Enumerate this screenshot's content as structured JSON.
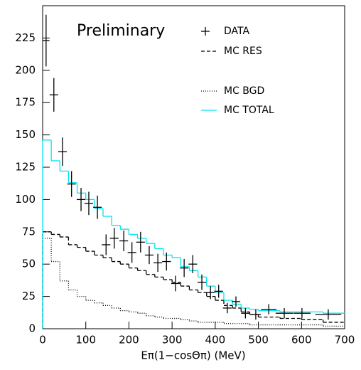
{
  "chart_data": {
    "type": "histogram",
    "annotation": "Preliminary",
    "x_label": "Eπ(1−cosΘπ) (MeV)",
    "xlim": [
      0,
      700
    ],
    "xticks": [
      0,
      100,
      200,
      300,
      400,
      500,
      600,
      700
    ],
    "ylim": [
      0,
      250
    ],
    "yticks": [
      0,
      25,
      50,
      75,
      100,
      125,
      150,
      175,
      200,
      225
    ],
    "bins": [
      0,
      20,
      40,
      60,
      80,
      100,
      120,
      140,
      160,
      180,
      200,
      220,
      240,
      260,
      280,
      300,
      320,
      340,
      360,
      380,
      400,
      420,
      440,
      460,
      480,
      500,
      550,
      600,
      650,
      700
    ],
    "series": [
      {
        "name": "MC RES",
        "color": "#000000",
        "style": "dashed",
        "values": [
          75,
          73,
          71,
          65,
          63,
          60,
          57,
          55,
          52,
          50,
          47,
          45,
          42,
          40,
          38,
          36,
          33,
          30,
          28,
          25,
          22,
          18,
          16,
          13,
          11,
          9,
          8,
          7,
          5
        ]
      },
      {
        "name": "MC BGD",
        "color": "#000000",
        "style": "dotted",
        "values": [
          70,
          52,
          37,
          30,
          25,
          22,
          20,
          18,
          16,
          14,
          13,
          12,
          10,
          9,
          8,
          8,
          7,
          6,
          5,
          5,
          5,
          4,
          4,
          4,
          3,
          3,
          3,
          3,
          2
        ]
      },
      {
        "name": "MC TOTAL",
        "color": "#00e5ee",
        "style": "solid",
        "values": [
          146,
          130,
          122,
          113,
          105,
          100,
          93,
          87,
          80,
          77,
          73,
          70,
          66,
          62,
          57,
          55,
          48,
          45,
          40,
          33,
          28,
          22,
          19,
          16,
          15,
          14,
          13,
          13,
          12
        ]
      }
    ],
    "points": {
      "name": "DATA",
      "color": "#000000",
      "x": [
        8,
        26,
        46,
        67,
        89,
        107,
        127,
        147,
        166,
        188,
        207,
        227,
        247,
        267,
        287,
        308,
        328,
        348,
        369,
        389,
        408,
        428,
        448,
        470,
        494,
        524,
        560,
        601,
        662
      ],
      "xerr": [
        8,
        10,
        10,
        10,
        10,
        10,
        10,
        10,
        10,
        10,
        10,
        10,
        10,
        10,
        10,
        10,
        10,
        10,
        10,
        10,
        10,
        10,
        10,
        10,
        12,
        18,
        20,
        20,
        30
      ],
      "values": [
        223,
        181,
        137,
        112,
        100,
        97,
        94,
        65,
        70,
        68,
        59,
        67,
        57,
        51,
        52,
        35,
        47,
        50,
        36,
        28,
        29,
        16,
        21,
        12,
        11,
        15,
        12,
        12,
        11
      ],
      "yerr": [
        20,
        13,
        11,
        10,
        9,
        9,
        9,
        8,
        8,
        8,
        8,
        8,
        7,
        7,
        7,
        6,
        7,
        7,
        6,
        5,
        5,
        4,
        4,
        4,
        4,
        4,
        4,
        4,
        4
      ]
    }
  }
}
